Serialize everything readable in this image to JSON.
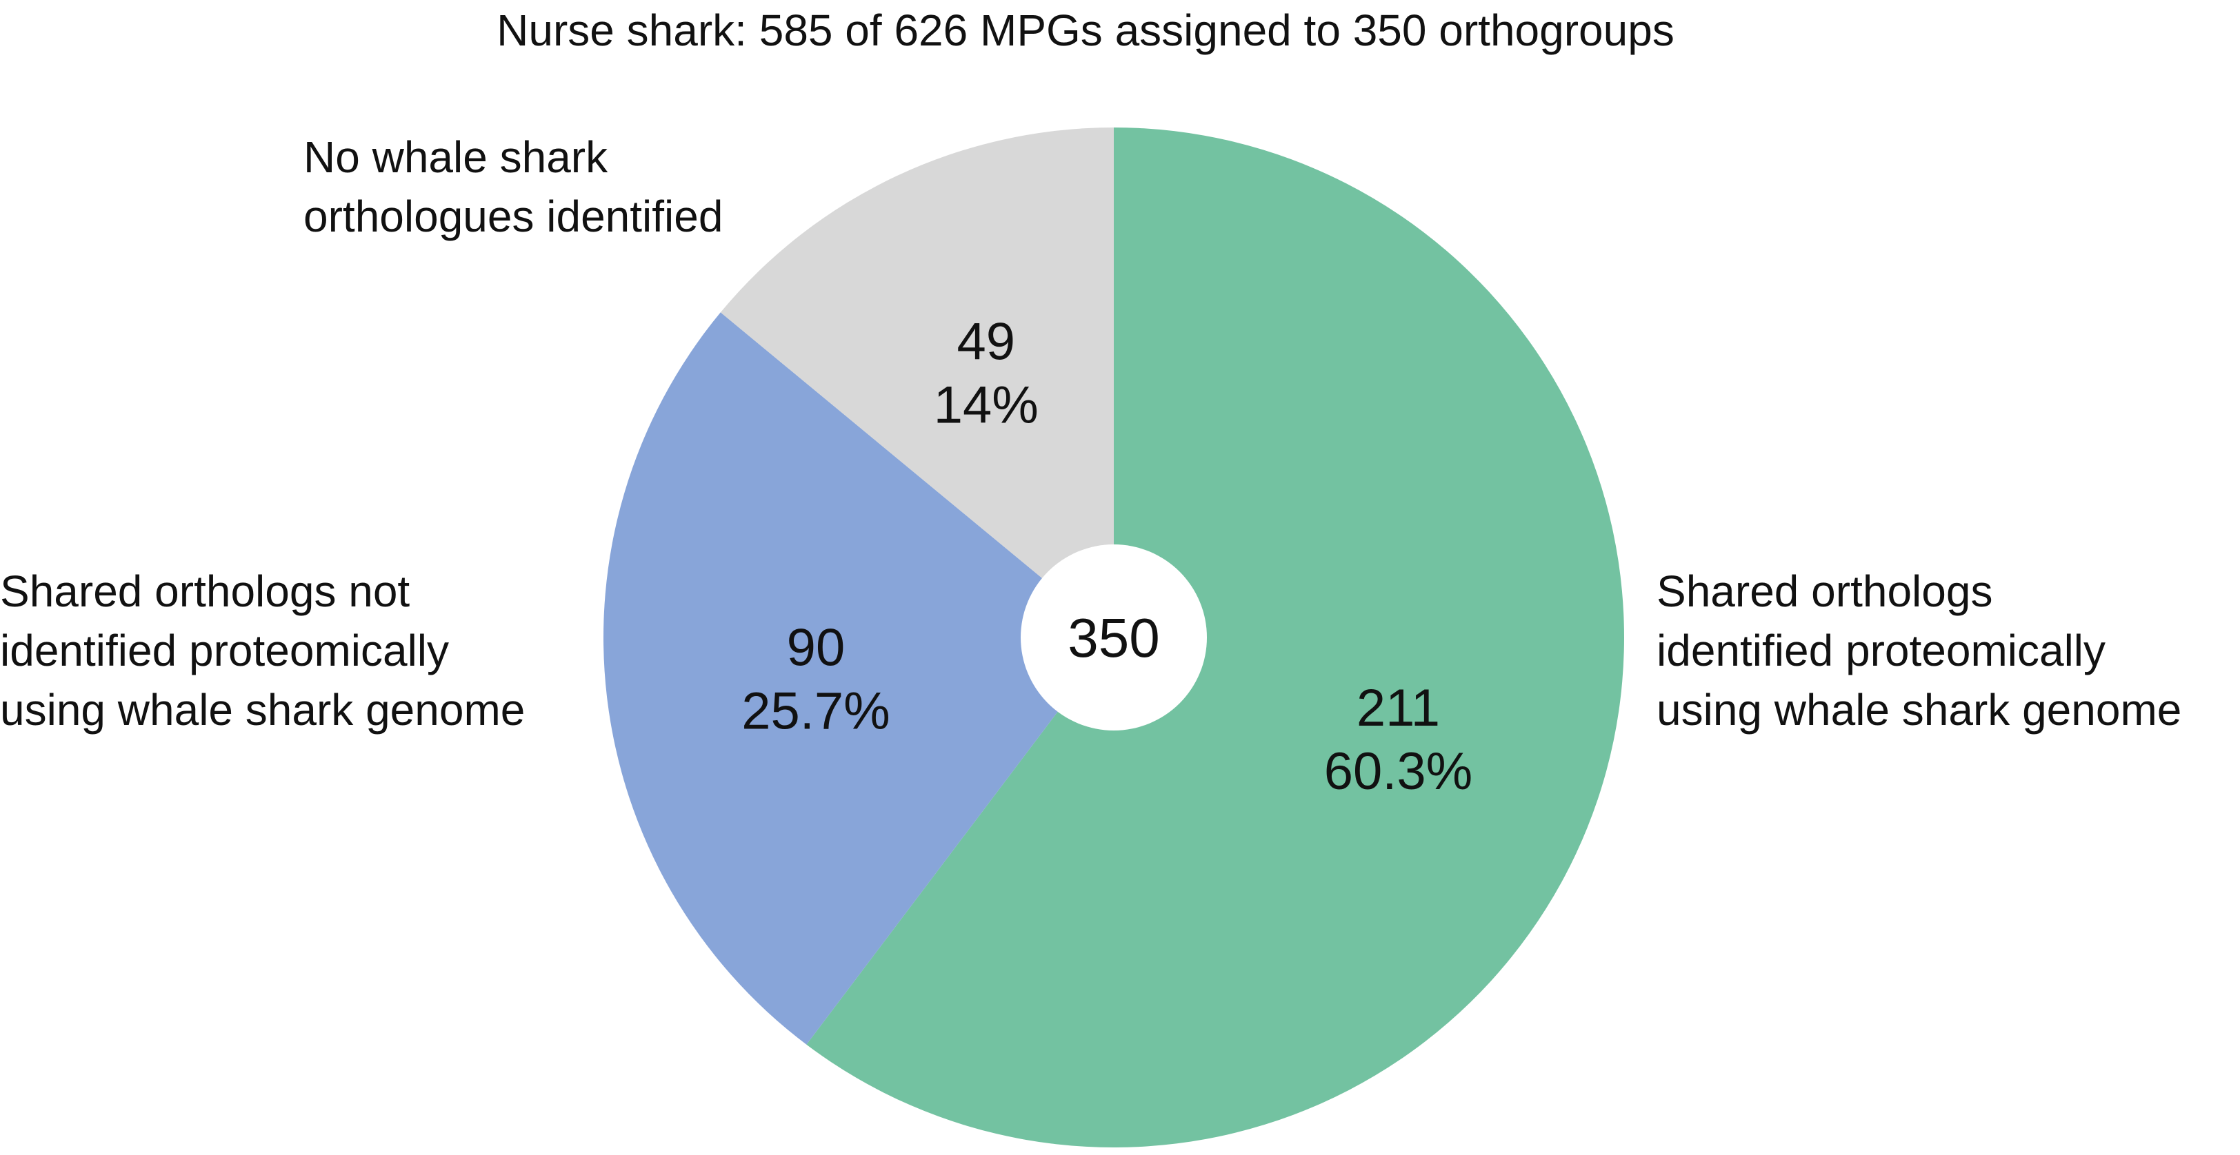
{
  "chart_data": {
    "type": "pie",
    "title": "Nurse shark: 585 of 626 MPGs assigned to 350 orthogroups",
    "center_label": "350",
    "start_angle_deg": 0,
    "direction": "clockwise",
    "slices": [
      {
        "value": 211,
        "percent_label": "60.3%",
        "category_label": [
          "Shared orthologs",
          "identified proteomically",
          "using whale shark genome"
        ],
        "color": "#73c2a1"
      },
      {
        "value": 90,
        "percent_label": "25.7%",
        "category_label": [
          "Shared orthologs not",
          "identified proteomically",
          "using whale shark genome"
        ],
        "color": "#88a5d9"
      },
      {
        "value": 49,
        "percent_label": "14%",
        "category_label": [
          "No whale shark",
          "orthologues identified"
        ],
        "color": "#d8d8d8"
      }
    ]
  }
}
